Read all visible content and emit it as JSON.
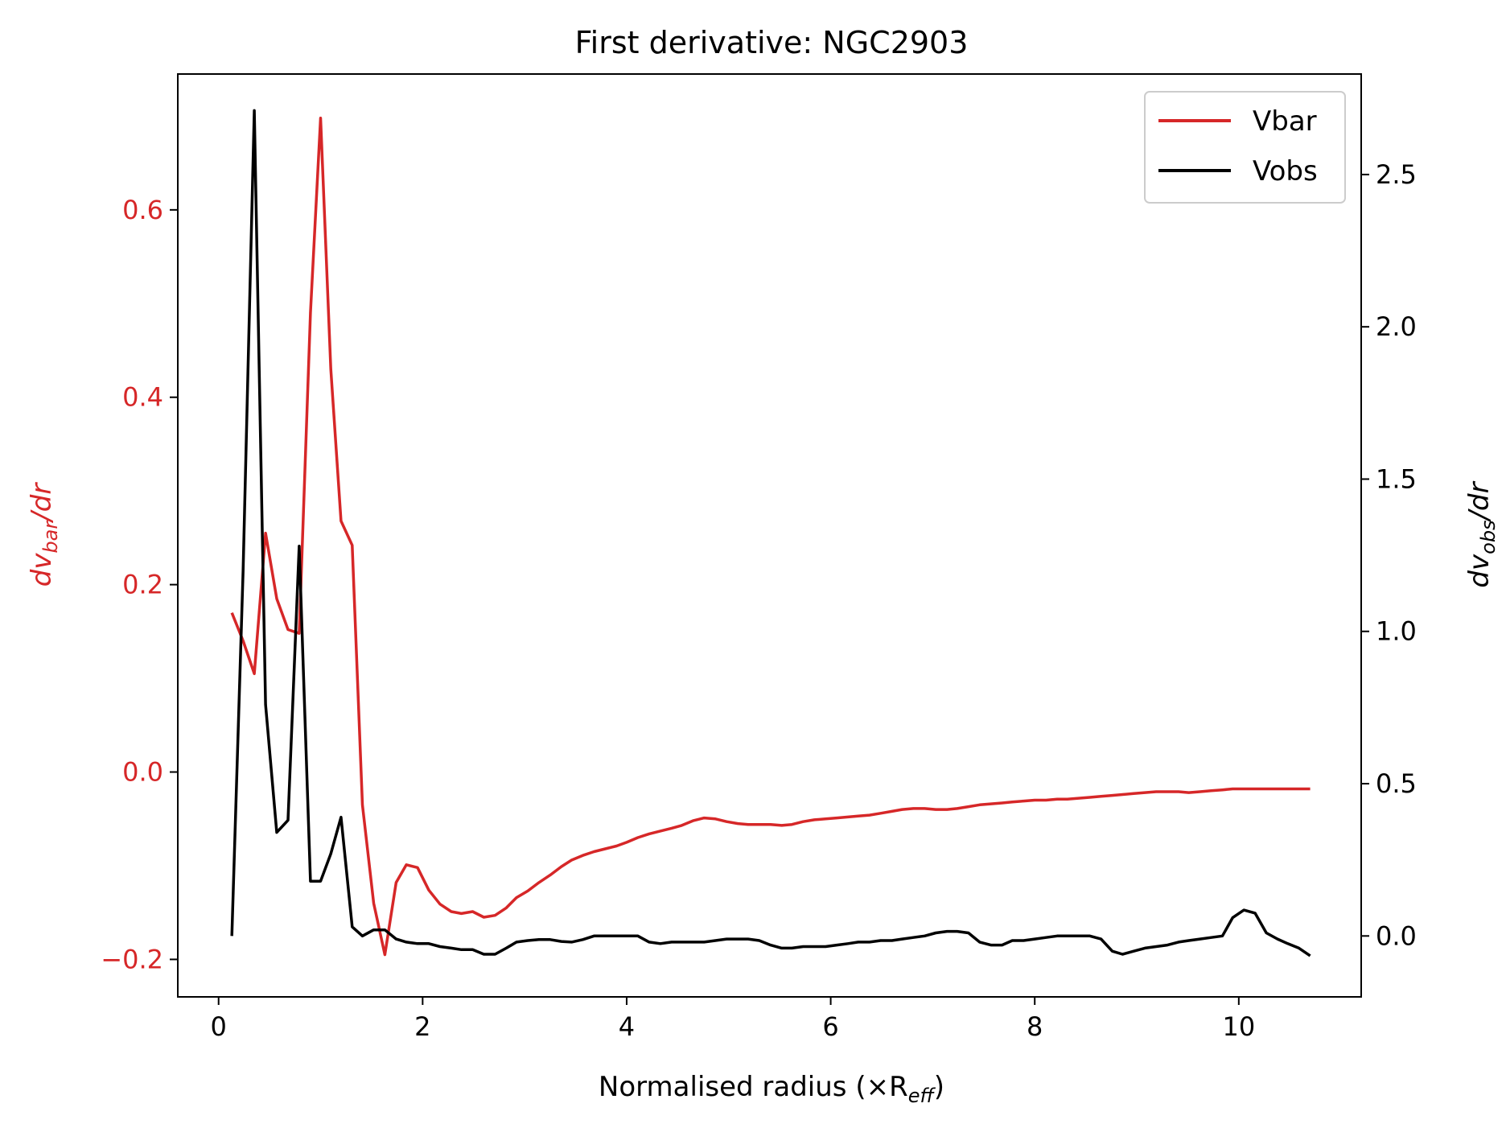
{
  "chart_data": {
    "type": "line",
    "title": "First derivative: NGC2903",
    "xlabel": "Normalised radius (×R",
    "xlabel_sub": "eff",
    "xlabel_close": ")",
    "ylabel_left": {
      "main": "dv",
      "sub": "bar",
      "tail": "/dr"
    },
    "ylabel_right": {
      "main": "dv",
      "sub": "obs",
      "tail": "/dr"
    },
    "xlim": [
      -0.4,
      11.2
    ],
    "ylim_left": [
      -0.24,
      0.745
    ],
    "ylim_right": [
      -0.2,
      2.83
    ],
    "x_ticks": [
      0,
      2,
      4,
      6,
      8,
      10
    ],
    "x_tick_labels": [
      "0",
      "2",
      "4",
      "6",
      "8",
      "10"
    ],
    "left_ticks": [
      -0.2,
      0.0,
      0.2,
      0.4,
      0.6
    ],
    "left_tick_labels": [
      "−0.2",
      "0.0",
      "0.2",
      "0.4",
      "0.6"
    ],
    "right_ticks": [
      0.0,
      0.5,
      1.0,
      1.5,
      2.0,
      2.5
    ],
    "right_tick_labels": [
      "0.0",
      "0.5",
      "1.0",
      "1.5",
      "2.0",
      "2.5"
    ],
    "grid": false,
    "legend_position": "upper right",
    "series": [
      {
        "name": "Vbar",
        "axis": "left",
        "color": "#d62728",
        "x": [
          0.13,
          0.24,
          0.35,
          0.46,
          0.57,
          0.68,
          0.79,
          0.9,
          1.0,
          1.1,
          1.2,
          1.31,
          1.41,
          1.52,
          1.63,
          1.74,
          1.84,
          1.95,
          2.06,
          2.17,
          2.28,
          2.38,
          2.49,
          2.6,
          2.71,
          2.82,
          2.92,
          3.03,
          3.14,
          3.25,
          3.36,
          3.46,
          3.57,
          3.68,
          3.79,
          3.9,
          4.0,
          4.11,
          4.22,
          4.33,
          4.44,
          4.54,
          4.65,
          4.76,
          4.87,
          4.98,
          5.09,
          5.19,
          5.3,
          5.41,
          5.52,
          5.62,
          5.73,
          5.84,
          5.95,
          6.06,
          6.17,
          6.27,
          6.38,
          6.49,
          6.6,
          6.7,
          6.81,
          6.92,
          7.03,
          7.14,
          7.24,
          7.35,
          7.46,
          7.57,
          7.68,
          7.78,
          7.89,
          8.0,
          8.11,
          8.22,
          8.32,
          8.43,
          8.54,
          8.65,
          8.76,
          8.86,
          8.97,
          9.08,
          9.19,
          9.3,
          9.41,
          9.51,
          9.62,
          9.73,
          9.84,
          9.94,
          10.05,
          10.16,
          10.27,
          10.38,
          10.48,
          10.59,
          10.7
        ],
        "y": [
          0.17,
          0.14,
          0.105,
          0.255,
          0.185,
          0.152,
          0.148,
          0.49,
          0.698,
          0.43,
          0.268,
          0.242,
          -0.035,
          -0.14,
          -0.195,
          -0.118,
          -0.099,
          -0.102,
          -0.126,
          -0.141,
          -0.149,
          -0.151,
          -0.149,
          -0.155,
          -0.153,
          -0.145,
          -0.134,
          -0.127,
          -0.118,
          -0.11,
          -0.101,
          -0.094,
          -0.089,
          -0.085,
          -0.082,
          -0.079,
          -0.075,
          -0.07,
          -0.066,
          -0.063,
          -0.06,
          -0.057,
          -0.052,
          -0.049,
          -0.05,
          -0.053,
          -0.055,
          -0.056,
          -0.056,
          -0.056,
          -0.057,
          -0.056,
          -0.053,
          -0.051,
          -0.05,
          -0.049,
          -0.048,
          -0.047,
          -0.046,
          -0.044,
          -0.042,
          -0.04,
          -0.039,
          -0.039,
          -0.04,
          -0.04,
          -0.039,
          -0.037,
          -0.035,
          -0.034,
          -0.033,
          -0.032,
          -0.031,
          -0.03,
          -0.03,
          -0.029,
          -0.029,
          -0.028,
          -0.027,
          -0.026,
          -0.025,
          -0.024,
          -0.023,
          -0.022,
          -0.021,
          -0.021,
          -0.021,
          -0.022,
          -0.021,
          -0.02,
          -0.019,
          -0.018,
          -0.018,
          -0.018,
          -0.018,
          -0.018,
          -0.018,
          -0.018,
          -0.018
        ]
      },
      {
        "name": "Vobs",
        "axis": "right",
        "color": "#000000",
        "x": [
          0.13,
          0.24,
          0.35,
          0.46,
          0.57,
          0.68,
          0.79,
          0.9,
          1.0,
          1.1,
          1.2,
          1.31,
          1.41,
          1.52,
          1.63,
          1.74,
          1.84,
          1.95,
          2.06,
          2.17,
          2.28,
          2.38,
          2.49,
          2.6,
          2.71,
          2.82,
          2.92,
          3.03,
          3.14,
          3.25,
          3.36,
          3.46,
          3.57,
          3.68,
          3.79,
          3.9,
          4.0,
          4.11,
          4.22,
          4.33,
          4.44,
          4.54,
          4.65,
          4.76,
          4.87,
          4.98,
          5.09,
          5.19,
          5.3,
          5.41,
          5.52,
          5.62,
          5.73,
          5.84,
          5.95,
          6.06,
          6.17,
          6.27,
          6.38,
          6.49,
          6.6,
          6.7,
          6.81,
          6.92,
          7.03,
          7.14,
          7.24,
          7.35,
          7.46,
          7.57,
          7.68,
          7.78,
          7.89,
          8.0,
          8.11,
          8.22,
          8.32,
          8.43,
          8.54,
          8.65,
          8.76,
          8.86,
          8.97,
          9.08,
          9.19,
          9.3,
          9.41,
          9.51,
          9.62,
          9.73,
          9.84,
          9.94,
          10.05,
          10.16,
          10.27,
          10.38,
          10.48,
          10.59,
          10.7
        ],
        "y": [
          0.0,
          1.2,
          2.71,
          0.76,
          0.34,
          0.38,
          1.28,
          0.18,
          0.18,
          0.27,
          0.39,
          0.03,
          0.0,
          0.02,
          0.02,
          -0.01,
          -0.02,
          -0.025,
          -0.025,
          -0.035,
          -0.04,
          -0.045,
          -0.045,
          -0.06,
          -0.06,
          -0.04,
          -0.02,
          -0.015,
          -0.012,
          -0.012,
          -0.018,
          -0.02,
          -0.012,
          0.0,
          0.0,
          0.0,
          0.0,
          0.0,
          -0.02,
          -0.025,
          -0.02,
          -0.02,
          -0.02,
          -0.02,
          -0.015,
          -0.01,
          -0.01,
          -0.01,
          -0.015,
          -0.03,
          -0.04,
          -0.04,
          -0.035,
          -0.035,
          -0.035,
          -0.03,
          -0.025,
          -0.02,
          -0.02,
          -0.015,
          -0.015,
          -0.01,
          -0.005,
          0.0,
          0.01,
          0.015,
          0.015,
          0.01,
          -0.02,
          -0.03,
          -0.03,
          -0.015,
          -0.015,
          -0.01,
          -0.005,
          0.0,
          0.0,
          0.0,
          0.0,
          -0.01,
          -0.05,
          -0.06,
          -0.05,
          -0.04,
          -0.035,
          -0.03,
          -0.02,
          -0.015,
          -0.01,
          -0.005,
          0.0,
          0.06,
          0.085,
          0.075,
          0.01,
          -0.01,
          -0.025,
          -0.04,
          -0.065
        ]
      }
    ]
  }
}
